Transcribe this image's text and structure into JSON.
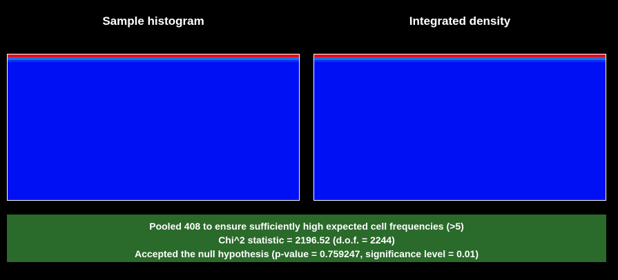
{
  "panels": {
    "left": {
      "title": "Sample histogram"
    },
    "right": {
      "title": "Integrated density"
    }
  },
  "colors": {
    "background": "#000000",
    "plot_fill": "#0010f5",
    "top_stripe": "#e01020",
    "second_stripe": "#1a6ee8",
    "result_box": "#2a6a2a",
    "text": "#ffffff"
  },
  "result": {
    "line1": "Pooled 408 to ensure sufficiently high expected cell frequencies (>5)",
    "line2": "Chi^2 statistic = 2196.52 (d.o.f. = 2244)",
    "line3": "Accepted the null hypothesis (p-value = 0.759247, significance level = 0.01)"
  }
}
